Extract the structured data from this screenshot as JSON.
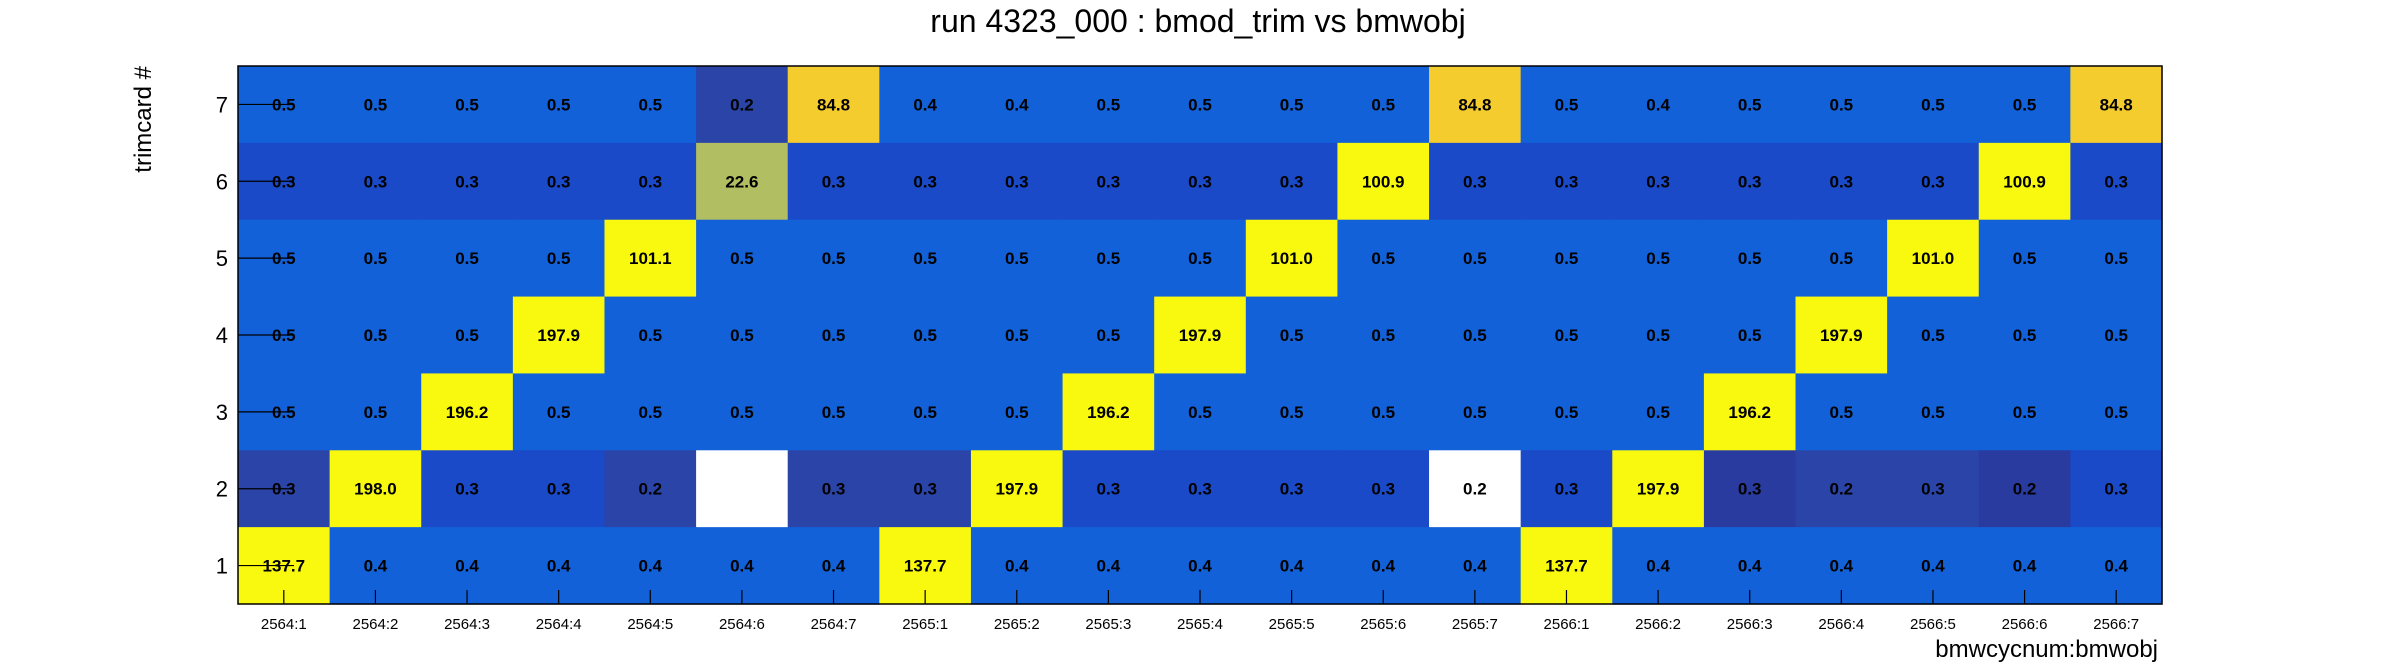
{
  "chart_data": {
    "type": "heatmap",
    "title": "run 4323_000 : bmod_trim vs bmwobj",
    "xlabel": "bmwcycnum:bmwobj",
    "ylabel": "trimcard #",
    "x_categories": [
      "2564:1",
      "2564:2",
      "2564:3",
      "2564:4",
      "2564:5",
      "2564:6",
      "2564:7",
      "2565:1",
      "2565:2",
      "2565:3",
      "2565:4",
      "2565:5",
      "2565:6",
      "2565:7",
      "2566:1",
      "2566:2",
      "2566:3",
      "2566:4",
      "2566:5",
      "2566:6",
      "2566:7"
    ],
    "y_categories": [
      "7",
      "6",
      "5",
      "4",
      "3",
      "2",
      "1"
    ],
    "values": [
      [
        "0.5",
        "0.5",
        "0.5",
        "0.5",
        "0.5",
        "0.2",
        "84.8",
        "0.4",
        "0.4",
        "0.5",
        "0.5",
        "0.5",
        "0.5",
        "84.8",
        "0.5",
        "0.4",
        "0.5",
        "0.5",
        "0.5",
        "0.5",
        "84.8"
      ],
      [
        "0.3",
        "0.3",
        "0.3",
        "0.3",
        "0.3",
        "22.6",
        "0.3",
        "0.3",
        "0.3",
        "0.3",
        "0.3",
        "0.3",
        "100.9",
        "0.3",
        "0.3",
        "0.3",
        "0.3",
        "0.3",
        "0.3",
        "100.9",
        "0.3"
      ],
      [
        "0.5",
        "0.5",
        "0.5",
        "0.5",
        "101.1",
        "0.5",
        "0.5",
        "0.5",
        "0.5",
        "0.5",
        "0.5",
        "101.0",
        "0.5",
        "0.5",
        "0.5",
        "0.5",
        "0.5",
        "0.5",
        "101.0",
        "0.5",
        "0.5"
      ],
      [
        "0.5",
        "0.5",
        "0.5",
        "197.9",
        "0.5",
        "0.5",
        "0.5",
        "0.5",
        "0.5",
        "0.5",
        "197.9",
        "0.5",
        "0.5",
        "0.5",
        "0.5",
        "0.5",
        "0.5",
        "197.9",
        "0.5",
        "0.5",
        "0.5"
      ],
      [
        "0.5",
        "0.5",
        "196.2",
        "0.5",
        "0.5",
        "0.5",
        "0.5",
        "0.5",
        "0.5",
        "196.2",
        "0.5",
        "0.5",
        "0.5",
        "0.5",
        "0.5",
        "0.5",
        "196.2",
        "0.5",
        "0.5",
        "0.5",
        "0.5"
      ],
      [
        "0.3",
        "198.0",
        "0.3",
        "0.3",
        "0.2",
        "",
        "0.3",
        "0.3",
        "197.9",
        "0.3",
        "0.3",
        "0.3",
        "0.3",
        "0.2",
        "0.3",
        "197.9",
        "0.3",
        "0.2",
        "0.3",
        "0.2",
        "0.3"
      ],
      [
        "137.7",
        "0.4",
        "0.4",
        "0.4",
        "0.4",
        "0.4",
        "0.4",
        "137.7",
        "0.4",
        "0.4",
        "0.4",
        "0.4",
        "0.4",
        "0.4",
        "137.7",
        "0.4",
        "0.4",
        "0.4",
        "0.4",
        "0.4",
        "0.4"
      ]
    ],
    "cell_colors": [
      [
        "#1261d8",
        "#1261d8",
        "#1261d8",
        "#1261d8",
        "#1261d8",
        "#2a44a8",
        "#f5cc2e",
        "#1261d8",
        "#1261d8",
        "#1261d8",
        "#1261d8",
        "#1261d8",
        "#1261d8",
        "#f5cc2e",
        "#1261d8",
        "#1261d8",
        "#1261d8",
        "#1261d8",
        "#1261d8",
        "#1261d8",
        "#f5cc2e"
      ],
      [
        "#1a4ac8",
        "#1a4ac8",
        "#1a4ac8",
        "#1a4ac8",
        "#1a4ac8",
        "#b1be62",
        "#1a4ac8",
        "#1a4ac8",
        "#1a4ac8",
        "#1a4ac8",
        "#1a4ac8",
        "#1a4ac8",
        "#f9f90f",
        "#1a4ac8",
        "#1a4ac8",
        "#1a4ac8",
        "#1a4ac8",
        "#1a4ac8",
        "#1a4ac8",
        "#f9f90f",
        "#1a4ac8"
      ],
      [
        "#1261d8",
        "#1261d8",
        "#1261d8",
        "#1261d8",
        "#f9f90f",
        "#1261d8",
        "#1261d8",
        "#1261d8",
        "#1261d8",
        "#1261d8",
        "#1261d8",
        "#f9f90f",
        "#1261d8",
        "#1261d8",
        "#1261d8",
        "#1261d8",
        "#1261d8",
        "#1261d8",
        "#f9f90f",
        "#1261d8",
        "#1261d8"
      ],
      [
        "#1261d8",
        "#1261d8",
        "#1261d8",
        "#f9f90f",
        "#1261d8",
        "#1261d8",
        "#1261d8",
        "#1261d8",
        "#1261d8",
        "#1261d8",
        "#f9f90f",
        "#1261d8",
        "#1261d8",
        "#1261d8",
        "#1261d8",
        "#1261d8",
        "#1261d8",
        "#f9f90f",
        "#1261d8",
        "#1261d8",
        "#1261d8"
      ],
      [
        "#1261d8",
        "#1261d8",
        "#f9f90f",
        "#1261d8",
        "#1261d8",
        "#1261d8",
        "#1261d8",
        "#1261d8",
        "#1261d8",
        "#f9f90f",
        "#1261d8",
        "#1261d8",
        "#1261d8",
        "#1261d8",
        "#1261d8",
        "#1261d8",
        "#f9f90f",
        "#1261d8",
        "#1261d8",
        "#1261d8",
        "#1261d8"
      ],
      [
        "#2a44a8",
        "#f9f90f",
        "#1a4ac8",
        "#1a4ac8",
        "#2a44a8",
        "#ffffff",
        "#2a44a8",
        "#2a44a8",
        "#f9f90f",
        "#1a4ac8",
        "#1a4ac8",
        "#1a4ac8",
        "#1a4ac8",
        "#ffffff",
        "#1a4ac8",
        "#f9f90f",
        "#2a3ba0",
        "#2a44a8",
        "#2a44a8",
        "#2a3ba0",
        "#1a4ac8"
      ],
      [
        "#f9f90f",
        "#1261d8",
        "#1261d8",
        "#1261d8",
        "#1261d8",
        "#1261d8",
        "#1261d8",
        "#f9f90f",
        "#1261d8",
        "#1261d8",
        "#1261d8",
        "#1261d8",
        "#1261d8",
        "#1261d8",
        "#f9f90f",
        "#1261d8",
        "#1261d8",
        "#1261d8",
        "#1261d8",
        "#1261d8",
        "#1261d8"
      ]
    ],
    "grid": false,
    "legend": "none"
  }
}
